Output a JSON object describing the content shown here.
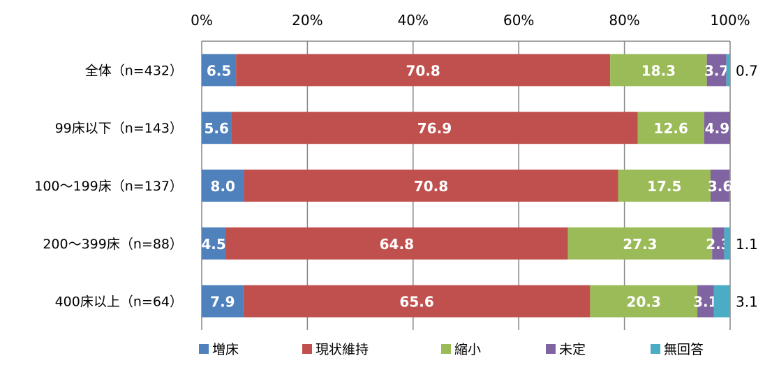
{
  "chart_data": {
    "type": "bar",
    "orientation": "horizontal",
    "stacked": true,
    "xlim": [
      0,
      100
    ],
    "x_ticks": [
      "0%",
      "20%",
      "40%",
      "60%",
      "80%",
      "100%"
    ],
    "categories": [
      "全体（n=432）",
      "99床以下（n=143）",
      "100～199床（n=137）",
      "200～399床（n=88）",
      "400床以上（n=64）"
    ],
    "series": [
      {
        "name": "増床",
        "color": "#4F81BD",
        "values": [
          6.5,
          5.6,
          8.0,
          4.5,
          7.9
        ]
      },
      {
        "name": "現状維持",
        "color": "#C0504D",
        "values": [
          70.8,
          76.9,
          70.8,
          64.8,
          65.6
        ]
      },
      {
        "name": "縮小",
        "color": "#9BBB59",
        "values": [
          18.3,
          12.6,
          17.5,
          27.3,
          20.3
        ]
      },
      {
        "name": "未定",
        "color": "#8064A2",
        "values": [
          3.7,
          4.9,
          3.6,
          2.3,
          3.1
        ]
      },
      {
        "name": "無回答",
        "color": "#4BACC6",
        "values": [
          0.7,
          0,
          0.1,
          1.1,
          3.1
        ]
      }
    ],
    "data_labels": [
      [
        "6.5",
        "70.8",
        "18.3",
        "3.7",
        "0.7"
      ],
      [
        "5.6",
        "76.9",
        "12.6",
        "4.9",
        ""
      ],
      [
        "8.0",
        "70.8",
        "17.5",
        "3.6",
        ""
      ],
      [
        "4.5",
        "64.8",
        "27.3",
        "2.3",
        "1.1"
      ],
      [
        "7.9",
        "65.6",
        "20.3",
        "3.1",
        "3.1"
      ]
    ],
    "legend_position": "bottom",
    "grid": true
  }
}
